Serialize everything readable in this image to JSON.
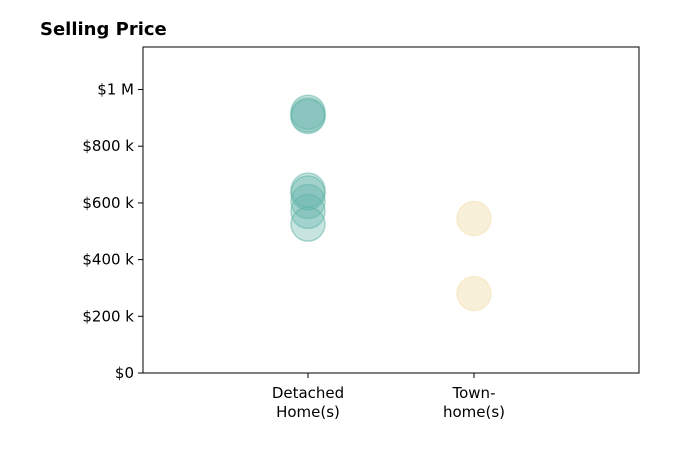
{
  "chart_data": {
    "type": "scatter",
    "title": "Selling Price",
    "xlabel": "",
    "ylabel": "",
    "categories": [
      [
        "Detached",
        "Home(s)"
      ],
      [
        "Town-",
        "home(s)"
      ]
    ],
    "ylim": [
      0,
      1150000
    ],
    "yticks": [
      {
        "value": 0,
        "label": "$0"
      },
      {
        "value": 200000,
        "label": "$200 k"
      },
      {
        "value": 400000,
        "label": "$400 k"
      },
      {
        "value": 600000,
        "label": "$600 k"
      },
      {
        "value": 800000,
        "label": "$800 k"
      },
      {
        "value": 1000000,
        "label": "$1 M"
      }
    ],
    "grid": false,
    "legend": "none",
    "series": [
      {
        "category_index": 0,
        "color": "#5FB3A6",
        "values": [
          920000,
          910000,
          905000,
          645000,
          635000,
          605000,
          570000,
          525000
        ]
      },
      {
        "category_index": 1,
        "color": "#F5E6C0",
        "values": [
          545000,
          280000
        ]
      }
    ]
  }
}
